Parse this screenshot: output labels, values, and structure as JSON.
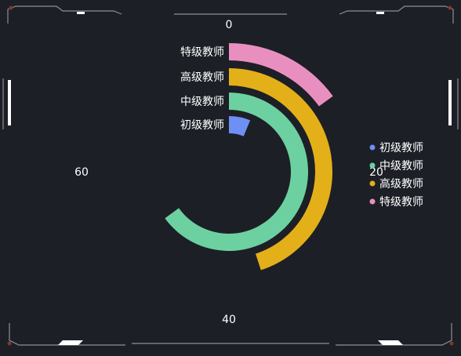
{
  "chart_data": {
    "type": "polar-bar",
    "categories": [
      "初级教师",
      "中级教师",
      "高级教师",
      "特级教师"
    ],
    "values": [
      5,
      52,
      36,
      12
    ],
    "angle_axis": {
      "min": 0,
      "max": 80,
      "tick_labels": [
        "0",
        "20",
        "40",
        "60"
      ]
    },
    "legend": {
      "position": "right",
      "items": [
        "初级教师",
        "中级教师",
        "高级教师",
        "特级教师"
      ]
    },
    "colors": [
      "#6e8ff4",
      "#6dd0a0",
      "#e3b01a",
      "#e98fc0"
    ],
    "grid": false
  },
  "frame": {
    "line_color": "#8d8f94",
    "accent_color": "#ffffff",
    "corner_dot_color": "#7a3b2a"
  }
}
